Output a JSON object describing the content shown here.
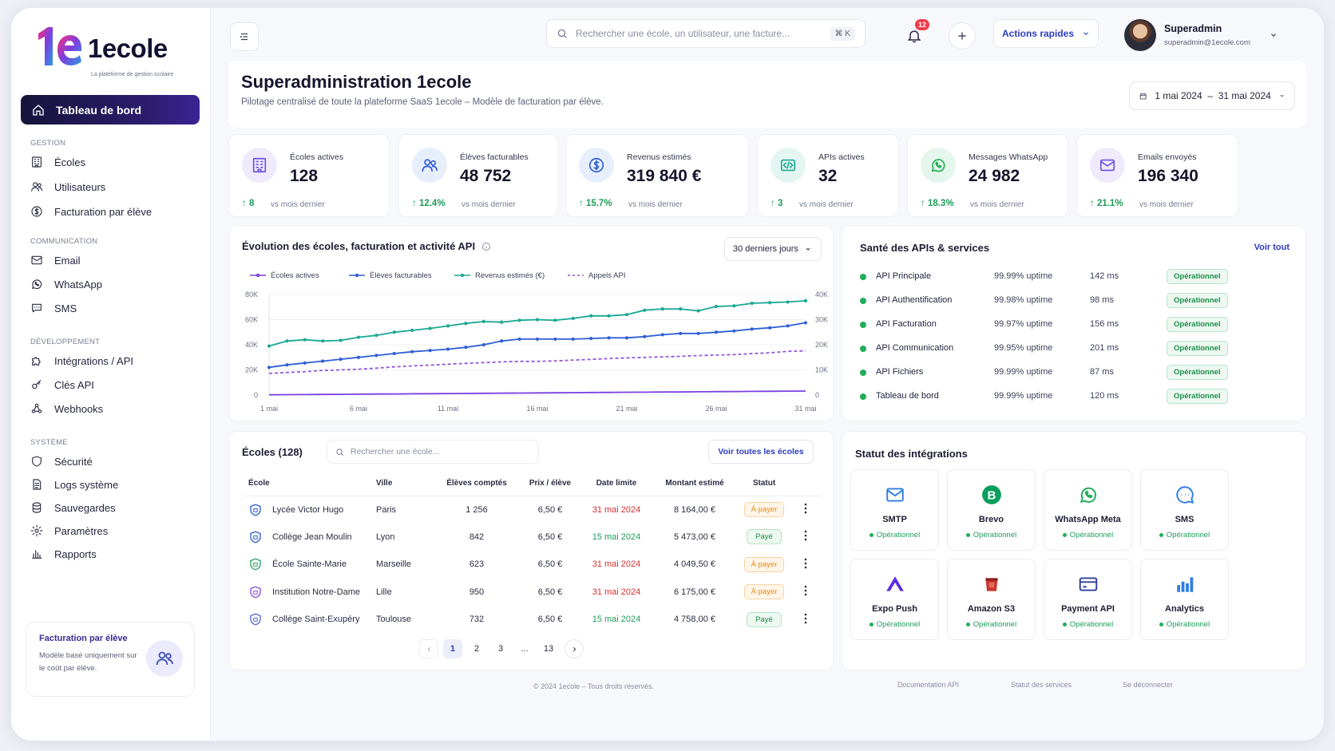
{
  "brand": {
    "name": "1ecole",
    "tagline": "La plateforme de gestion scolaire"
  },
  "sidebar": {
    "active": "Tableau de bord",
    "sections": [
      {
        "title": "GESTION",
        "items": [
          {
            "label": "Écoles",
            "icon": "building-icon"
          },
          {
            "label": "Utilisateurs",
            "icon": "users-icon"
          },
          {
            "label": "Facturation par élève",
            "icon": "coin-icon"
          }
        ]
      },
      {
        "title": "COMMUNICATION",
        "items": [
          {
            "label": "Email",
            "icon": "mail-icon"
          },
          {
            "label": "WhatsApp",
            "icon": "whatsapp-icon"
          },
          {
            "label": "SMS",
            "icon": "chat-icon"
          }
        ]
      },
      {
        "title": "DÉVELOPPEMENT",
        "items": [
          {
            "label": "Intégrations / API",
            "icon": "puzzle-icon"
          },
          {
            "label": "Clés API",
            "icon": "key-icon"
          },
          {
            "label": "Webhooks",
            "icon": "webhook-icon"
          }
        ]
      },
      {
        "title": "SYSTÈME",
        "items": [
          {
            "label": "Sécurité",
            "icon": "shield-icon"
          },
          {
            "label": "Logs système",
            "icon": "document-icon"
          },
          {
            "label": "Sauvegardes",
            "icon": "database-icon"
          },
          {
            "label": "Paramètres",
            "icon": "gear-icon"
          },
          {
            "label": "Rapports",
            "icon": "bar-chart-icon"
          }
        ]
      }
    ],
    "promo": {
      "title": "Facturation par élève",
      "desc": "Modèle basé uniquement sur le coût par élève."
    }
  },
  "topbar": {
    "search_placeholder": "Rechercher une école, un utilisateur, une facture...",
    "shortcut": "⌘ K",
    "notif_count": "12",
    "quick_actions": "Actions rapides",
    "user": {
      "name": "Superadmin",
      "email": "superadmin@1ecole.com"
    }
  },
  "header": {
    "title": "Superadministration 1ecole",
    "subtitle": "Pilotage centralisé de toute la plateforme SaaS 1ecole – Modèle de facturation par élève.",
    "date_range": "1 mai 2024  –  31 mai 2024"
  },
  "kpis": [
    {
      "label": "Écoles actives",
      "value": "128",
      "delta": "↑ 8",
      "vs": "vs mois dernier",
      "color": "#6a4ee0",
      "bg": "#efebfd",
      "icon": "building-icon"
    },
    {
      "label": "Élèves facturables",
      "value": "48 752",
      "delta": "↑ 12.4%",
      "vs": "vs mois dernier",
      "color": "#2f5fd6",
      "bg": "#e8effc",
      "icon": "users-icon"
    },
    {
      "label": "Revenus estimés",
      "value": "319 840 €",
      "delta": "↑ 15.7%",
      "vs": "vs mois dernier",
      "color": "#2f5fd6",
      "bg": "#e8effc",
      "icon": "euro-icon"
    },
    {
      "label": "APIs actives",
      "value": "32",
      "delta": "↑ 3",
      "vs": "vs mois dernier",
      "color": "#19a890",
      "bg": "#e4f6f2",
      "icon": "code-icon"
    },
    {
      "label": "Messages WhatsApp",
      "value": "24 982",
      "delta": "↑ 18.3%",
      "vs": "vs mois dernier",
      "color": "#1fae5a",
      "bg": "#e5f6ec",
      "icon": "whatsapp-icon"
    },
    {
      "label": "Emails envoyés",
      "value": "196 340",
      "delta": "↑ 21.1%",
      "vs": "vs mois dernier",
      "color": "#6a4ee0",
      "bg": "#efebfd",
      "icon": "mail-icon"
    }
  ],
  "chart": {
    "title": "Évolution des écoles, facturation et activité API",
    "period": "30 derniers jours"
  },
  "chart_data": {
    "type": "line",
    "x_ticks": [
      "1 mai",
      "6 mai",
      "11 mai",
      "16 mai",
      "21 mai",
      "26 mai",
      "31 mai"
    ],
    "y_left_ticks": [
      "80K",
      "60K",
      "40K",
      "20K",
      "0"
    ],
    "y_right_ticks": [
      "40K",
      "30K",
      "20K",
      "10K",
      "0"
    ],
    "ylim_left": [
      0,
      80000
    ],
    "ylim_right": [
      0,
      40000
    ],
    "x": [
      1,
      2,
      3,
      4,
      5,
      6,
      7,
      8,
      9,
      10,
      11,
      12,
      13,
      14,
      15,
      16,
      17,
      18,
      19,
      20,
      21,
      22,
      23,
      24,
      25,
      26,
      27,
      28,
      29,
      30,
      31
    ],
    "legend_position": "top-left",
    "series": [
      {
        "name": "Écoles actives",
        "color": "#7a3fe0",
        "dash": false,
        "axis": "left",
        "values": [
          200,
          300,
          400,
          500,
          600,
          700,
          800,
          900,
          1000,
          1100,
          1200,
          1300,
          1400,
          1500,
          1600,
          1700,
          1800,
          1900,
          2000,
          2100,
          2200,
          2300,
          2400,
          2500,
          2600,
          2700,
          2800,
          2900,
          3000,
          3100,
          3200
        ]
      },
      {
        "name": "Élèves facturables",
        "color": "#2f5fd6",
        "dash": false,
        "axis": "left",
        "values": [
          22000,
          24000,
          25500,
          27000,
          28500,
          30000,
          31500,
          33000,
          34500,
          35500,
          36500,
          38000,
          40000,
          43000,
          44500,
          44500,
          44500,
          44500,
          45000,
          45500,
          45500,
          46500,
          48000,
          49000,
          49000,
          50000,
          51000,
          52500,
          53500,
          55000,
          57500
        ]
      },
      {
        "name": "Revenus estimés (€)",
        "color": "#1aa894",
        "dash": false,
        "axis": "left",
        "values": [
          39000,
          43000,
          44000,
          43000,
          43500,
          46000,
          47500,
          50000,
          51500,
          53000,
          55000,
          57000,
          58500,
          58000,
          59500,
          60000,
          59500,
          61000,
          63000,
          63000,
          64000,
          67500,
          68500,
          68500,
          67000,
          70500,
          71000,
          73000,
          73500,
          74000,
          75000
        ]
      },
      {
        "name": "Appels API",
        "color": "#9458d8",
        "dash": true,
        "axis": "right",
        "values": [
          8600,
          9000,
          9300,
          9800,
          10000,
          10300,
          10700,
          11200,
          11600,
          11900,
          12300,
          12600,
          12900,
          13200,
          13400,
          13400,
          13600,
          13900,
          14200,
          14500,
          14800,
          15000,
          15200,
          15400,
          15700,
          15900,
          16100,
          16500,
          16800,
          17400,
          17600
        ]
      }
    ]
  },
  "health": {
    "title": "Santé des APIs & services",
    "see_all": "Voir tout",
    "rows": [
      {
        "name": "API Principale",
        "uptime": "99.99% uptime",
        "latency": "142 ms",
        "status": "Opérationnel"
      },
      {
        "name": "API Authentification",
        "uptime": "99.98% uptime",
        "latency": "98 ms",
        "status": "Opérationnel"
      },
      {
        "name": "API Facturation",
        "uptime": "99.97% uptime",
        "latency": "156 ms",
        "status": "Opérationnel"
      },
      {
        "name": "API Communication",
        "uptime": "99.95% uptime",
        "latency": "201 ms",
        "status": "Opérationnel"
      },
      {
        "name": "API Fichiers",
        "uptime": "99.99% uptime",
        "latency": "87 ms",
        "status": "Opérationnel"
      },
      {
        "name": "Tableau de bord",
        "uptime": "99.99% uptime",
        "latency": "120 ms",
        "status": "Opérationnel"
      }
    ]
  },
  "schools": {
    "title": "Écoles (128)",
    "search_placeholder": "Rechercher une école...",
    "see_all": "Voir toutes les écoles",
    "columns": [
      "École",
      "Ville",
      "Élèves comptés",
      "Prix / élève",
      "Date limite",
      "Montant estimé",
      "Statut"
    ],
    "rows": [
      {
        "name": "Lycée Victor Hugo",
        "city": "Paris",
        "students": "1 256",
        "price": "6,50 €",
        "date": "31 mai 2024",
        "date_color": "#d92d2d",
        "amount": "8 164,00 €",
        "status": "À payer",
        "kind": "pay",
        "shield": "#2f5fd6"
      },
      {
        "name": "Collège Jean Moulin",
        "city": "Lyon",
        "students": "842",
        "price": "6,50 €",
        "date": "15 mai 2024",
        "date_color": "#1f9d58",
        "amount": "5 473,00 €",
        "status": "Payé",
        "kind": "paid",
        "shield": "#2f5fd6"
      },
      {
        "name": "École Sainte-Marie",
        "city": "Marseille",
        "students": "623",
        "price": "6,50 €",
        "date": "31 mai 2024",
        "date_color": "#d92d2d",
        "amount": "4 049,50 €",
        "status": "À payer",
        "kind": "pay",
        "shield": "#2aa866"
      },
      {
        "name": "Institution Notre-Dame",
        "city": "Lille",
        "students": "950",
        "price": "6,50 €",
        "date": "31 mai 2024",
        "date_color": "#d92d2d",
        "amount": "6 175,00 €",
        "status": "À payer",
        "kind": "pay",
        "shield": "#8a4ee0"
      },
      {
        "name": "Collège Saint-Exupéry",
        "city": "Toulouse",
        "students": "732",
        "price": "6,50 €",
        "date": "15 mai 2024",
        "date_color": "#1f9d58",
        "amount": "4 758,00 €",
        "status": "Payé",
        "kind": "paid",
        "shield": "#5a6ad6"
      }
    ],
    "pagination": [
      "1",
      "2",
      "3",
      "...",
      "13"
    ]
  },
  "integrations": {
    "title": "Statut des intégrations",
    "items": [
      {
        "name": "SMTP",
        "status": "Opérationnel",
        "icon": "mail-icon"
      },
      {
        "name": "Brevo",
        "status": "Opérationnel",
        "icon": "brevo-logo-icon"
      },
      {
        "name": "WhatsApp Meta",
        "status": "Opérationnel",
        "icon": "whatsapp-icon"
      },
      {
        "name": "SMS",
        "status": "Opérationnel",
        "icon": "chat-icon"
      },
      {
        "name": "Expo Push",
        "status": "Opérationnel",
        "icon": "expo-logo-icon"
      },
      {
        "name": "Amazon S3",
        "status": "Opérationnel",
        "icon": "s3-bucket-icon"
      },
      {
        "name": "Payment API",
        "status": "Opérationnel",
        "icon": "credit-card-icon"
      },
      {
        "name": "Analytics",
        "status": "Opérationnel",
        "icon": "bar-chart-icon"
      }
    ]
  },
  "footer": {
    "copyright": "© 2024 1ecole – Tous droits réservés.",
    "links": [
      "Documentation API",
      "Statut des services",
      "Se déconnecter"
    ]
  }
}
